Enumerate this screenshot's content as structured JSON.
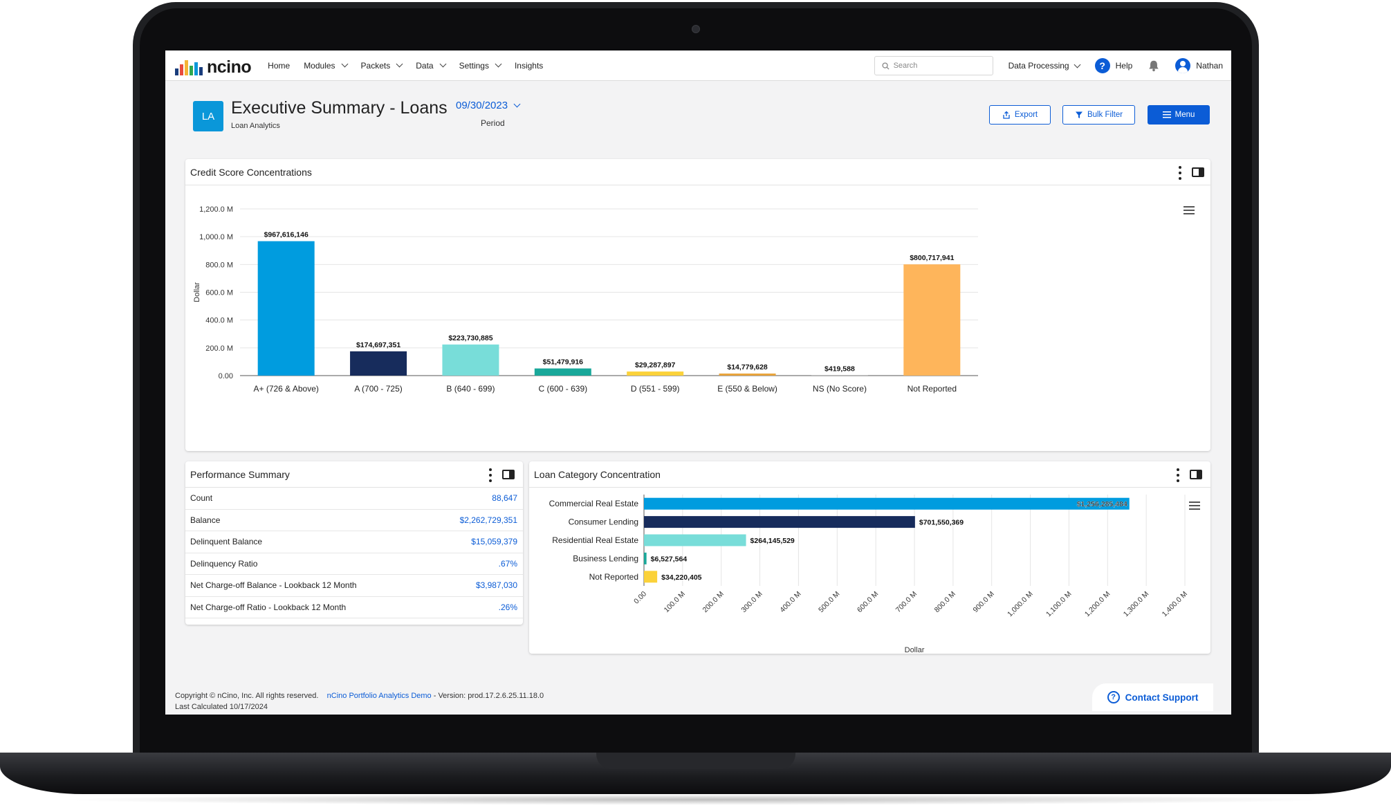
{
  "brand": {
    "name": "ncino",
    "bar_colors": [
      "#1a3d7c",
      "#e94b3c",
      "#f5b335",
      "#2fa84f",
      "#0a97d9",
      "#1a3d7c"
    ]
  },
  "nav": {
    "items": [
      {
        "label": "Home",
        "dropdown": false
      },
      {
        "label": "Modules",
        "dropdown": true
      },
      {
        "label": "Packets",
        "dropdown": true
      },
      {
        "label": "Data",
        "dropdown": true
      },
      {
        "label": "Settings",
        "dropdown": true
      },
      {
        "label": "Insights",
        "dropdown": false
      }
    ],
    "search_placeholder": "Search",
    "data_processing": "Data Processing",
    "help": "Help",
    "help_glyph": "?",
    "user": "Nathan"
  },
  "header": {
    "badge": "LA",
    "title": "Executive Summary - Loans",
    "subtitle": "Loan Analytics",
    "period_value": "09/30/2023",
    "period_label": "Period",
    "export": "Export",
    "bulk_filter": "Bulk Filter",
    "menu": "Menu"
  },
  "credit_card": {
    "title": "Credit Score Concentrations"
  },
  "performance": {
    "title": "Performance Summary",
    "rows": [
      {
        "label": "Count",
        "value": "88,647"
      },
      {
        "label": "Balance",
        "value": "$2,262,729,351"
      },
      {
        "label": "Delinquent Balance",
        "value": "$15,059,379"
      },
      {
        "label": "Delinquency Ratio",
        "value": ".67%"
      },
      {
        "label": "Net Charge-off Balance - Lookback 12 Month",
        "value": "$3,987,030"
      },
      {
        "label": "Net Charge-off Ratio - Lookback 12 Month",
        "value": ".26%"
      }
    ]
  },
  "loan_card": {
    "title": "Loan Category Concentration"
  },
  "chart_data": [
    {
      "type": "bar",
      "title": "Credit Score Concentrations",
      "ylabel": "Dollar",
      "xlabel": "",
      "ylim": [
        0,
        1200000000
      ],
      "ytick_values": [
        0,
        200000000,
        400000000,
        600000000,
        800000000,
        1000000000,
        1200000000
      ],
      "ytick_labels": [
        "0.00",
        "200.0 M",
        "400.0 M",
        "600.0 M",
        "800.0 M",
        "1,000.0 M",
        "1,200.0 M"
      ],
      "grid": true,
      "categories": [
        "A+ (726 & Above)",
        "A (700 - 725)",
        "B (640 - 699)",
        "C (600 - 639)",
        "D (551 - 599)",
        "E (550 & Below)",
        "NS (No Score)",
        "Not Reported"
      ],
      "values": [
        967616146,
        174697351,
        223730885,
        51479916,
        29287897,
        14779628,
        419588,
        800717941
      ],
      "data_labels": [
        "$967,616,146",
        "$174,697,351",
        "$223,730,885",
        "$51,479,916",
        "$29,287,897",
        "$14,779,628",
        "$419,588",
        "$800,717,941"
      ],
      "colors": [
        "#009cdf",
        "#172c5c",
        "#78ddd9",
        "#1aa89a",
        "#fbd23a",
        "#e8a33b",
        "#8c8c8c",
        "#feb55b"
      ]
    },
    {
      "type": "bar",
      "orientation": "horizontal",
      "title": "Loan Category Concentration",
      "xlabel": "Dollar",
      "ylabel": "",
      "xlim": [
        0,
        1400000000
      ],
      "xtick_values": [
        0,
        100000000,
        200000000,
        300000000,
        400000000,
        500000000,
        600000000,
        700000000,
        800000000,
        900000000,
        1000000000,
        1100000000,
        1200000000,
        1300000000,
        1400000000
      ],
      "xtick_labels": [
        "0.00",
        "100.0 M",
        "200.0 M",
        "300.0 M",
        "400.0 M",
        "500.0 M",
        "600.0 M",
        "700.0 M",
        "800.0 M",
        "900.0 M",
        "1,000.0 M",
        "1,100.0 M",
        "1,200.0 M",
        "1,300.0 M",
        "1,400.0 M"
      ],
      "grid": true,
      "categories": [
        "Commercial Real Estate",
        "Consumer Lending",
        "Residential Real Estate",
        "Business Lending",
        "Not Reported"
      ],
      "values": [
        1256285484,
        701550369,
        264145529,
        6527564,
        34220405
      ],
      "data_labels": [
        "$1,256,285,484",
        "$701,550,369",
        "$264,145,529",
        "$6,527,564",
        "$34,220,405"
      ],
      "colors": [
        "#009cdf",
        "#172c5c",
        "#78ddd9",
        "#1aa89a",
        "#fbd23a"
      ]
    }
  ],
  "footer": {
    "copyright": "Copyright © nCino, Inc. All rights reserved.",
    "app_link": "nCino Portfolio Analytics Demo",
    "version": " - Version: prod.17.2.6.25.11.18.0",
    "last_calculated": "Last Calculated 10/17/2024",
    "support": "Contact Support",
    "support_glyph": "?"
  }
}
